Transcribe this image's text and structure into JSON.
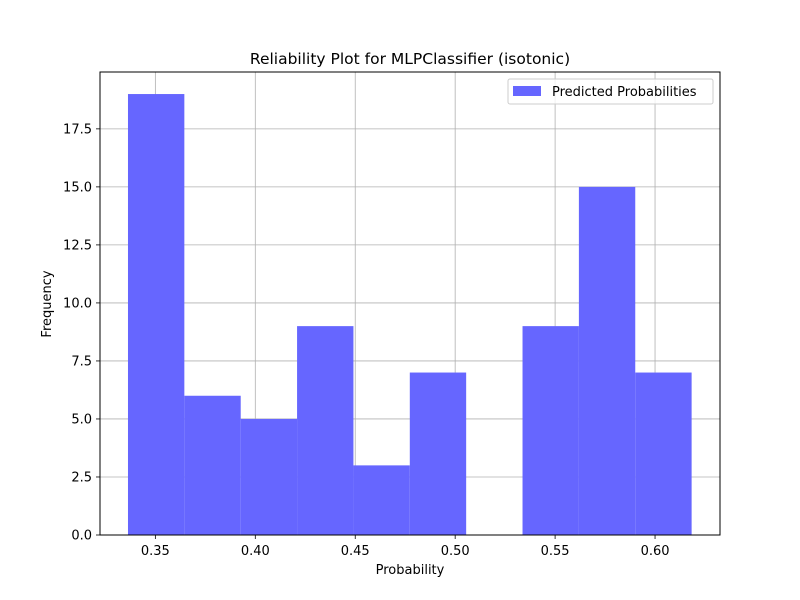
{
  "chart_data": {
    "type": "bar",
    "title": "Reliability Plot for MLPClassifier (isotonic)",
    "xlabel": "Probability",
    "ylabel": "Frequency",
    "xlim": [
      0.3223,
      0.6325
    ],
    "ylim": [
      0,
      19.95
    ],
    "xticks": [
      "0.35",
      "0.40",
      "0.45",
      "0.50",
      "0.55",
      "0.60"
    ],
    "yticks": [
      "0.0",
      "2.5",
      "5.0",
      "7.5",
      "10.0",
      "12.5",
      "15.0",
      "17.5"
    ],
    "grid": true,
    "legend_position": "top-right",
    "series": [
      {
        "name": "Predicted Probabilities",
        "color": "#6666ff",
        "bins": [
          {
            "start": 0.3363,
            "end": 0.3645,
            "value": 19
          },
          {
            "start": 0.3645,
            "end": 0.3927,
            "value": 6
          },
          {
            "start": 0.3927,
            "end": 0.4209,
            "value": 5
          },
          {
            "start": 0.4209,
            "end": 0.4491,
            "value": 9
          },
          {
            "start": 0.4491,
            "end": 0.4773,
            "value": 3
          },
          {
            "start": 0.4773,
            "end": 0.5055,
            "value": 7
          },
          {
            "start": 0.5055,
            "end": 0.5337,
            "value": 0
          },
          {
            "start": 0.5337,
            "end": 0.5619,
            "value": 9
          },
          {
            "start": 0.5619,
            "end": 0.5901,
            "value": 15
          },
          {
            "start": 0.5901,
            "end": 0.6183,
            "value": 7
          }
        ]
      }
    ]
  }
}
